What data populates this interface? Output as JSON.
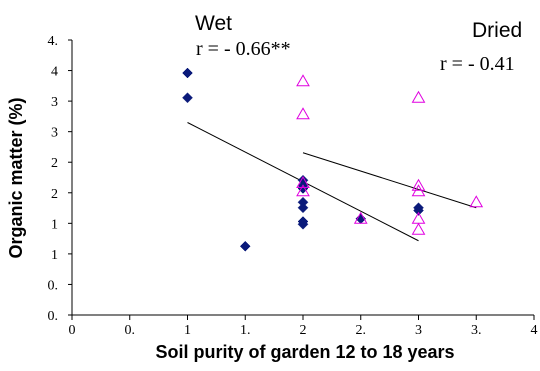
{
  "chart_data": {
    "type": "scatter",
    "xlabel": "Soil purity of garden 12 to 18 years",
    "ylabel": "Organic matter (%)",
    "xlim": [
      0,
      4
    ],
    "ylim": [
      0,
      5
    ],
    "grid": false,
    "x_tick_labels": [
      "0",
      "0.",
      "1",
      "1.",
      "2",
      "2.",
      "3",
      "3.",
      "4"
    ],
    "y_tick_labels": [
      "0.",
      "0.",
      "1",
      "1",
      "2",
      "2",
      "3",
      "3",
      "4",
      "4."
    ],
    "series": [
      {
        "name": "Wet",
        "marker": "diamond",
        "color": "#0a1a7a",
        "r_label": "r = - 0.66**",
        "points": [
          {
            "x": 1.0,
            "y": 4.4
          },
          {
            "x": 1.0,
            "y": 3.95
          },
          {
            "x": 1.5,
            "y": 1.25
          },
          {
            "x": 2.0,
            "y": 2.45
          },
          {
            "x": 2.0,
            "y": 2.35
          },
          {
            "x": 2.0,
            "y": 2.3
          },
          {
            "x": 2.0,
            "y": 2.05
          },
          {
            "x": 2.0,
            "y": 1.95
          },
          {
            "x": 2.0,
            "y": 1.7
          },
          {
            "x": 2.0,
            "y": 1.65
          },
          {
            "x": 2.5,
            "y": 1.75
          },
          {
            "x": 3.0,
            "y": 1.95
          },
          {
            "x": 3.0,
            "y": 1.9
          }
        ],
        "trendline": {
          "x": [
            1.0,
            3.0
          ],
          "y": [
            3.5,
            1.35
          ]
        }
      },
      {
        "name": "Dried",
        "marker": "triangle",
        "color": "#e000e0",
        "r_label": "r = - 0.41",
        "points": [
          {
            "x": 2.0,
            "y": 4.25
          },
          {
            "x": 2.0,
            "y": 3.65
          },
          {
            "x": 2.0,
            "y": 2.4
          },
          {
            "x": 2.0,
            "y": 2.25
          },
          {
            "x": 2.5,
            "y": 1.75
          },
          {
            "x": 3.0,
            "y": 3.95
          },
          {
            "x": 3.0,
            "y": 2.35
          },
          {
            "x": 3.0,
            "y": 2.25
          },
          {
            "x": 3.0,
            "y": 1.75
          },
          {
            "x": 3.0,
            "y": 1.55
          },
          {
            "x": 3.5,
            "y": 2.05
          }
        ],
        "trendline": {
          "x": [
            2.0,
            3.5
          ],
          "y": [
            2.95,
            1.95
          ]
        }
      }
    ],
    "colors": {
      "axis": "#000000",
      "text": "#000000"
    }
  }
}
